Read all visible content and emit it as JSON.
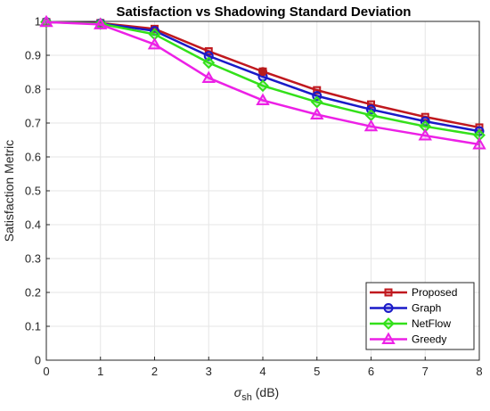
{
  "chart_data": {
    "type": "line",
    "title": "Satisfaction vs Shadowing Standard Deviation",
    "xlabel": {
      "symbol": "σ",
      "subscript": "sh",
      "unit": " (dB)"
    },
    "ylabel": "Satisfaction Metric",
    "xlim": [
      0,
      8
    ],
    "ylim": [
      0,
      1
    ],
    "xticks": [
      "0",
      "1",
      "2",
      "3",
      "4",
      "5",
      "6",
      "7",
      "8"
    ],
    "yticks": [
      "0",
      "0.1",
      "0.2",
      "0.3",
      "0.4",
      "0.5",
      "0.6",
      "0.7",
      "0.8",
      "0.9",
      "1"
    ],
    "grid": true,
    "legend_position": "bottom-right",
    "x": [
      0,
      1,
      2,
      3,
      4,
      5,
      6,
      7,
      8
    ],
    "series": [
      {
        "name": "Proposed",
        "color": "#c0181e",
        "marker": "square",
        "values": [
          0.998,
          0.995,
          0.978,
          0.912,
          0.852,
          0.797,
          0.755,
          0.718,
          0.687
        ]
      },
      {
        "name": "Graph",
        "color": "#1a1ac8",
        "marker": "circle",
        "values": [
          0.998,
          0.994,
          0.972,
          0.898,
          0.837,
          0.78,
          0.74,
          0.705,
          0.676
        ]
      },
      {
        "name": "NetFlow",
        "color": "#33e01a",
        "marker": "diamond",
        "values": [
          0.998,
          0.993,
          0.962,
          0.878,
          0.81,
          0.762,
          0.723,
          0.69,
          0.664
        ]
      },
      {
        "name": "Greedy",
        "color": "#ec20e6",
        "marker": "triangle",
        "values": [
          0.998,
          0.991,
          0.932,
          0.833,
          0.767,
          0.725,
          0.69,
          0.663,
          0.637
        ]
      }
    ],
    "highlight": {
      "x": 4,
      "y": 0.852,
      "color": "#b81c1c"
    }
  }
}
